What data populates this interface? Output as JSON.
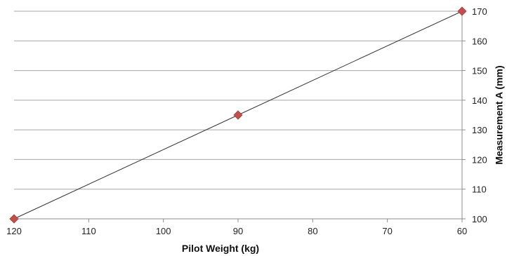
{
  "chart_data": {
    "type": "line",
    "x": [
      120,
      90,
      60
    ],
    "series": [
      {
        "values": [
          100,
          135,
          170
        ],
        "color": "#c0504d",
        "line_color": "#333333",
        "marker": "diamond"
      }
    ],
    "xlabel": "Pilot Weight (kg)",
    "ylabel": "Measurement A (mm)",
    "xlim": [
      120,
      60
    ],
    "ylim": [
      100,
      170
    ],
    "x_reversed": true,
    "y_axis_side": "right",
    "xticks": [
      120,
      110,
      100,
      90,
      80,
      70,
      60
    ],
    "yticks": [
      100,
      110,
      120,
      130,
      140,
      150,
      160,
      170
    ],
    "grid": "horizontal",
    "gridline_color": "#a6a6a6",
    "legend": "none"
  }
}
